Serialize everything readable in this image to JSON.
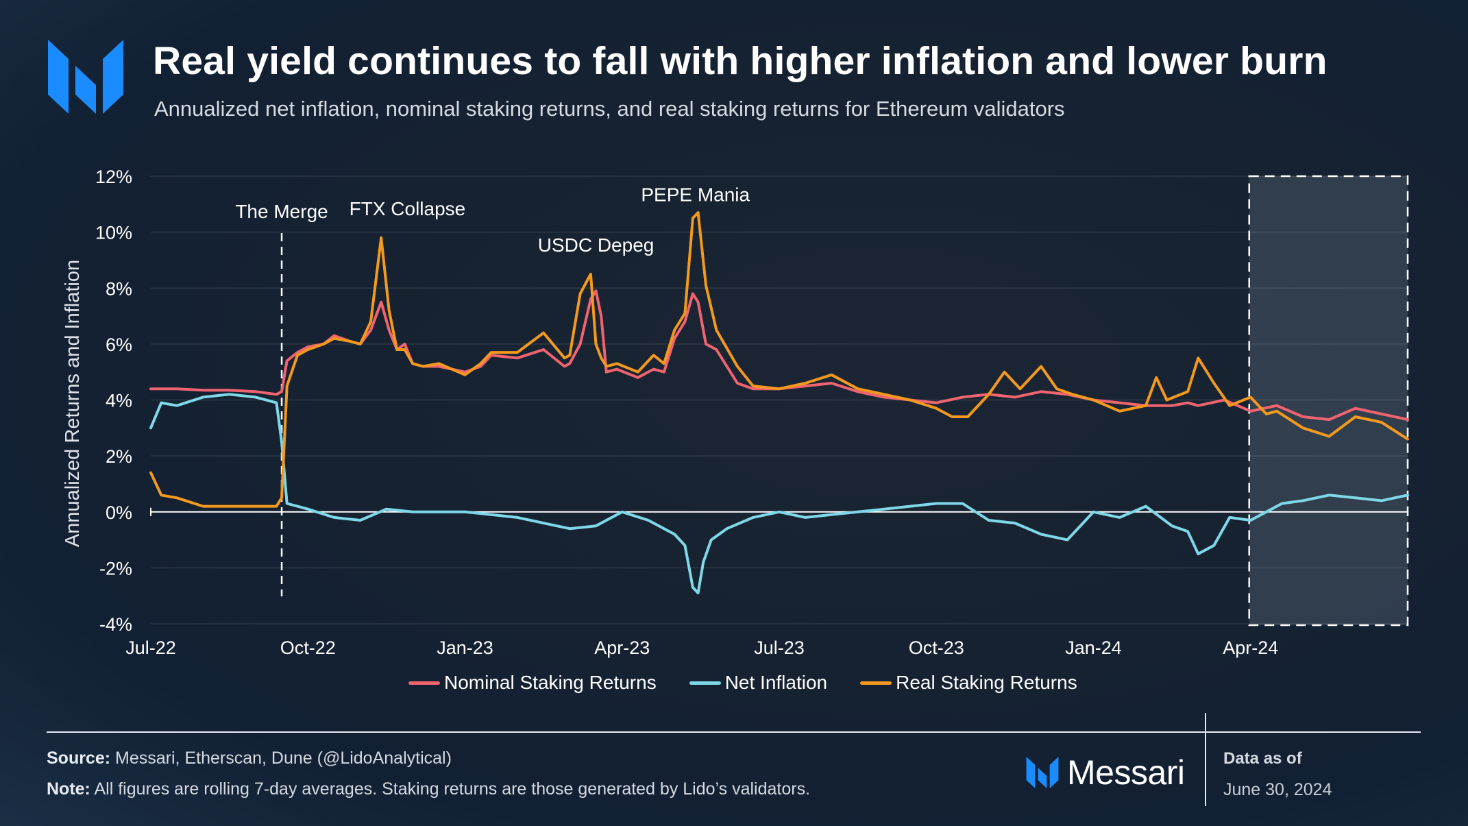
{
  "header": {
    "title": "Real yield continues to fall with higher inflation and lower burn",
    "subtitle": "Annualized net inflation, nominal staking returns, and real staking returns for Ethereum validators"
  },
  "colors": {
    "nominal": "#f06470",
    "inflation": "#7fd8e8",
    "real": "#f39a1e",
    "logo": "#1a8cff"
  },
  "chart_data": {
    "type": "line",
    "ylabel": "Annualized Returns and Inflation",
    "xlabel": "",
    "ylim": [
      -4,
      12
    ],
    "yticks": [
      -4,
      -2,
      0,
      2,
      4,
      6,
      8,
      10,
      12
    ],
    "ytick_labels": [
      "-4%",
      "-2%",
      "0%",
      "2%",
      "4%",
      "6%",
      "8%",
      "10%",
      "12%"
    ],
    "x_range_months": [
      0,
      24
    ],
    "xticks": [
      0,
      3,
      6,
      9,
      12,
      15,
      18,
      21
    ],
    "xtick_labels": [
      "Jul-22",
      "Oct-22",
      "Jan-23",
      "Apr-23",
      "Jul-23",
      "Oct-23",
      "Jan-24",
      "Apr-24"
    ],
    "x_unit": "months since Jul 1, 2022",
    "annotations": [
      {
        "label": "The Merge",
        "x": 2.5,
        "y": 10.5,
        "vline": true
      },
      {
        "label": "FTX Collapse",
        "x": 4.9,
        "y": 10.6
      },
      {
        "label": "USDC Depeg",
        "x": 8.5,
        "y": 9.3
      },
      {
        "label": "PEPE Mania",
        "x": 10.4,
        "y": 11.1
      }
    ],
    "highlight_range": [
      21,
      24
    ],
    "series": [
      {
        "name": "Nominal Staking Returns",
        "x": [
          0,
          0.5,
          1,
          1.5,
          2,
          2.4,
          2.5,
          2.6,
          2.8,
          3,
          3.3,
          3.5,
          3.8,
          4,
          4.2,
          4.4,
          4.55,
          4.7,
          4.85,
          5,
          5.2,
          5.5,
          6,
          6.3,
          6.5,
          7,
          7.5,
          7.9,
          8,
          8.2,
          8.4,
          8.5,
          8.6,
          8.7,
          8.9,
          9.3,
          9.6,
          9.8,
          10,
          10.2,
          10.35,
          10.45,
          10.6,
          10.8,
          11.2,
          11.5,
          12,
          12.5,
          13,
          13.5,
          14,
          14.5,
          15,
          15.5,
          16,
          16.5,
          17,
          17.5,
          18,
          18.5,
          19,
          19.5,
          19.8,
          20,
          20.5,
          21,
          21.5,
          22,
          22.5,
          23,
          23.5,
          24
        ],
        "values": [
          4.4,
          4.4,
          4.35,
          4.35,
          4.3,
          4.2,
          4.3,
          5.4,
          5.7,
          5.9,
          6.0,
          6.3,
          6.1,
          6.0,
          6.5,
          7.5,
          6.5,
          5.8,
          6.0,
          5.3,
          5.2,
          5.2,
          5.0,
          5.2,
          5.6,
          5.5,
          5.8,
          5.2,
          5.3,
          6.0,
          7.6,
          7.9,
          7.0,
          5.0,
          5.1,
          4.8,
          5.1,
          5.0,
          6.2,
          6.8,
          7.8,
          7.5,
          6.0,
          5.8,
          4.6,
          4.4,
          4.4,
          4.5,
          4.6,
          4.3,
          4.1,
          4.0,
          3.9,
          4.1,
          4.2,
          4.1,
          4.3,
          4.2,
          4.0,
          3.9,
          3.8,
          3.8,
          3.9,
          3.8,
          4.0,
          3.6,
          3.8,
          3.4,
          3.3,
          3.7,
          3.5,
          3.3
        ]
      },
      {
        "name": "Net Inflation",
        "x": [
          0,
          0.2,
          0.5,
          1,
          1.5,
          2,
          2.4,
          2.5,
          2.6,
          2.8,
          3,
          3.5,
          4,
          4.5,
          5,
          5.5,
          6,
          6.5,
          7,
          7.5,
          8,
          8.5,
          9,
          9.5,
          10,
          10.2,
          10.35,
          10.45,
          10.55,
          10.7,
          11,
          11.5,
          12,
          12.5,
          13,
          13.5,
          14,
          14.5,
          15,
          15.5,
          16,
          16.5,
          17,
          17.5,
          18,
          18.5,
          19,
          19.5,
          19.8,
          20,
          20.3,
          20.6,
          21,
          21.3,
          21.6,
          22,
          22.5,
          23,
          23.5,
          24
        ],
        "values": [
          3.0,
          3.9,
          3.8,
          4.1,
          4.2,
          4.1,
          3.9,
          2.5,
          0.3,
          0.2,
          0.1,
          -0.2,
          -0.3,
          0.1,
          0.0,
          0.0,
          0.0,
          -0.1,
          -0.2,
          -0.4,
          -0.6,
          -0.5,
          0.0,
          -0.3,
          -0.8,
          -1.2,
          -2.7,
          -2.9,
          -1.8,
          -1.0,
          -0.6,
          -0.2,
          0.0,
          -0.2,
          -0.1,
          0.0,
          0.1,
          0.2,
          0.3,
          0.3,
          -0.3,
          -0.4,
          -0.8,
          -1.0,
          0.0,
          -0.2,
          0.2,
          -0.5,
          -0.7,
          -1.5,
          -1.2,
          -0.2,
          -0.3,
          0.0,
          0.3,
          0.4,
          0.6,
          0.5,
          0.4,
          0.6
        ]
      },
      {
        "name": "Real Staking Returns",
        "x": [
          0,
          0.2,
          0.5,
          1,
          1.5,
          2,
          2.4,
          2.5,
          2.6,
          2.8,
          3,
          3.3,
          3.5,
          3.8,
          4,
          4.2,
          4.4,
          4.55,
          4.7,
          4.85,
          5,
          5.2,
          5.5,
          6,
          6.3,
          6.5,
          7,
          7.5,
          7.9,
          8,
          8.2,
          8.4,
          8.5,
          8.6,
          8.7,
          8.9,
          9.3,
          9.6,
          9.8,
          10,
          10.2,
          10.35,
          10.45,
          10.6,
          10.8,
          11.2,
          11.5,
          12,
          12.5,
          13,
          13.5,
          14,
          14.5,
          15,
          15.3,
          15.6,
          16,
          16.3,
          16.6,
          17,
          17.3,
          17.6,
          18,
          18.5,
          19,
          19.2,
          19.4,
          19.8,
          20,
          20.3,
          20.6,
          21,
          21.3,
          21.5,
          22,
          22.5,
          23,
          23.5,
          24
        ],
        "values": [
          1.4,
          0.6,
          0.5,
          0.2,
          0.2,
          0.2,
          0.2,
          0.5,
          4.5,
          5.6,
          5.8,
          6.0,
          6.2,
          6.1,
          6.0,
          6.8,
          9.8,
          7.2,
          5.8,
          5.8,
          5.3,
          5.2,
          5.3,
          4.9,
          5.3,
          5.7,
          5.7,
          6.4,
          5.5,
          5.6,
          7.8,
          8.5,
          6.0,
          5.5,
          5.2,
          5.3,
          5.0,
          5.6,
          5.3,
          6.5,
          7.1,
          10.5,
          10.7,
          8.1,
          6.5,
          5.2,
          4.5,
          4.4,
          4.6,
          4.9,
          4.4,
          4.2,
          4.0,
          3.7,
          3.4,
          3.4,
          4.2,
          5.0,
          4.4,
          5.2,
          4.4,
          4.2,
          4.0,
          3.6,
          3.8,
          4.8,
          4.0,
          4.3,
          5.5,
          4.6,
          3.8,
          4.1,
          3.5,
          3.6,
          3.0,
          2.7,
          3.4,
          3.2,
          2.6
        ]
      }
    ]
  },
  "legend": [
    {
      "label": "Nominal Staking Returns",
      "key": "nominal"
    },
    {
      "label": "Net Inflation",
      "key": "inflation"
    },
    {
      "label": "Real Staking Returns",
      "key": "real"
    }
  ],
  "footer": {
    "source_label": "Source:",
    "source_text": "Messari, Etherscan, Dune (@LidoAnalytical)",
    "note_label": "Note:",
    "note_text": "All figures are rolling 7-day averages. Staking returns are those generated by Lido’s validators.",
    "brand": "Messari",
    "data_as_of_label": "Data as of",
    "data_as_of_date": "June 30, 2024"
  }
}
